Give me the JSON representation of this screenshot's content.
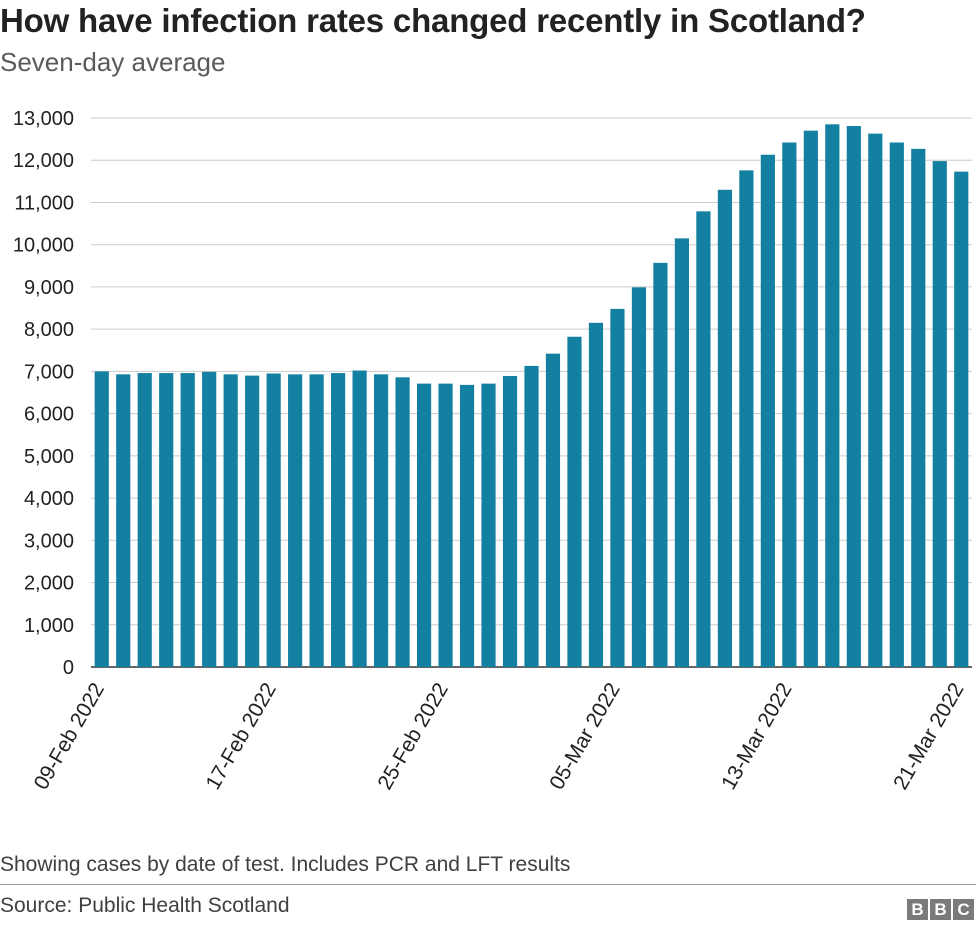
{
  "header": {
    "title": "How have infection rates changed recently in Scotland?",
    "subtitle": "Seven-day average"
  },
  "footer": {
    "note": "Showing cases by date of test. Includes PCR and LFT results",
    "source": "Source: Public Health Scotland",
    "logo_letters": [
      "B",
      "B",
      "C"
    ]
  },
  "colors": {
    "bar": "#1380A1",
    "grid": "#cbcbcb",
    "text": "#222222"
  },
  "chart_data": {
    "type": "bar",
    "title": "How have infection rates changed recently in Scotland?",
    "subtitle": "Seven-day average",
    "xlabel": "",
    "ylabel": "",
    "ylim": [
      0,
      13000
    ],
    "yticks": [
      0,
      1000,
      2000,
      3000,
      4000,
      5000,
      6000,
      7000,
      8000,
      9000,
      10000,
      11000,
      12000,
      13000
    ],
    "ytick_labels": [
      "0",
      "1,000",
      "2,000",
      "3,000",
      "4,000",
      "5,000",
      "6,000",
      "7,000",
      "8,000",
      "9,000",
      "10,000",
      "11,000",
      "12,000",
      "13,000"
    ],
    "grid": true,
    "x_tick_labels": [
      "09-Feb 2022",
      "17-Feb 2022",
      "25-Feb 2022",
      "05-Mar 2022",
      "13-Mar 2022",
      "21-Mar 2022"
    ],
    "categories": [
      "09-Feb 2022",
      "10-Feb 2022",
      "11-Feb 2022",
      "12-Feb 2022",
      "13-Feb 2022",
      "14-Feb 2022",
      "15-Feb 2022",
      "16-Feb 2022",
      "17-Feb 2022",
      "18-Feb 2022",
      "19-Feb 2022",
      "20-Feb 2022",
      "21-Feb 2022",
      "22-Feb 2022",
      "23-Feb 2022",
      "24-Feb 2022",
      "25-Feb 2022",
      "26-Feb 2022",
      "27-Feb 2022",
      "28-Feb 2022",
      "01-Mar 2022",
      "02-Mar 2022",
      "03-Mar 2022",
      "04-Mar 2022",
      "05-Mar 2022",
      "06-Mar 2022",
      "07-Mar 2022",
      "08-Mar 2022",
      "09-Mar 2022",
      "10-Mar 2022",
      "11-Mar 2022",
      "12-Mar 2022",
      "13-Mar 2022",
      "14-Mar 2022",
      "15-Mar 2022",
      "16-Mar 2022",
      "17-Mar 2022",
      "18-Mar 2022",
      "19-Mar 2022",
      "20-Mar 2022",
      "21-Mar 2022"
    ],
    "values": [
      7000,
      6930,
      6960,
      6960,
      6960,
      6990,
      6930,
      6900,
      6950,
      6930,
      6930,
      6960,
      7020,
      6930,
      6860,
      6710,
      6710,
      6680,
      6710,
      6890,
      7130,
      7420,
      7820,
      8150,
      8480,
      8990,
      9570,
      10150,
      10790,
      11300,
      11760,
      12130,
      12420,
      12700,
      12850,
      12810,
      12630,
      12420,
      12270,
      11980,
      11730
    ]
  }
}
